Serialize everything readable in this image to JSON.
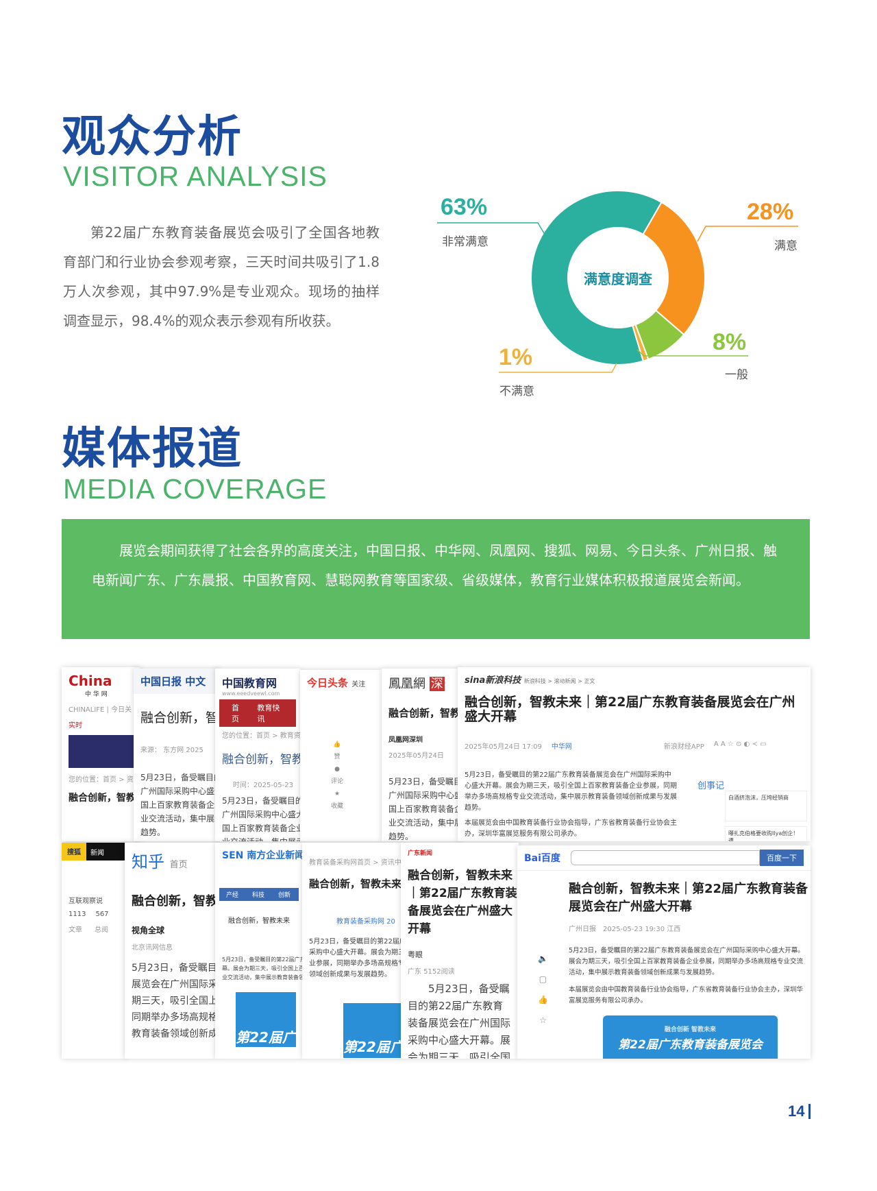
{
  "visitor": {
    "title_cn": "观众分析",
    "title_en": "VISITOR ANALYSIS",
    "paragraph": "第22届广东教育装备展览会吸引了全国各地教育部门和行业协会参观考察，三天时间共吸引了1.8万人次参观，其中97.9%是专业观众。现场的抽样调查显示，98.4%的观众表示参观有所收获。"
  },
  "chart_data": {
    "type": "pie",
    "style": "donut",
    "title": "满意度调查",
    "categories": [
      "非常满意",
      "满意",
      "一般",
      "不满意"
    ],
    "values": [
      63,
      28,
      8,
      1
    ],
    "labels": [
      "63%",
      "28%",
      "8%",
      "1%"
    ],
    "colors": [
      "#2baf9f",
      "#f7921e",
      "#8cc63f",
      "#f0b13a"
    ]
  },
  "media": {
    "title_cn": "媒体报道",
    "title_en": "MEDIA COVERAGE",
    "paragraph": "展览会期间获得了社会各界的高度关注，中国日报、中华网、凤凰网、搜狐、网易、今日头条、广州日报、触电新闻广东、广东晨报、中国教育网、慧聪网教育等国家级、省级媒体，教育行业媒体积极报道展览会新闻。"
  },
  "collage": {
    "headline": "融合创新，智教未来｜第22届广东教育装备展览会在广州盛大开幕",
    "headline_short": "融合创新，智教未来",
    "body1": "5月23日，备受瞩目的第22届广东教育装备展览会在广州国际采购中心盛大开幕。展会为期三天，吸引全国上百家教育装备企业参展，同期举办多场高规格专业交流活动，集中展示教育装备领域创新成果与发展趋势。",
    "body2": "本届展览会由中国教育装备行业协会指导，广东省教育装备行业协会主办，深圳华富展览服务有限公司承办。",
    "banner": "第22届广东教育装备展览会",
    "banner_slogan": "融合创新  智教未来",
    "china": {
      "logo": "China",
      "sub": "中 华 网",
      "nav": "CHINALIFE | 今日关",
      "live": "实时",
      "crumb": "您的位置：首页 > 资"
    },
    "chinadaily": {
      "logo": "中国日报 中文",
      "source": "来源： 东方网 2025"
    },
    "edu": {
      "logo": "中国教育网",
      "url": "www.eeedveewl.com",
      "nav": [
        "首页",
        "教育快讯"
      ],
      "crumb": "您的位置：首页 > 教育资讯 >",
      "time": "时间：2025-05-23"
    },
    "toutiao": {
      "logo": "今日头条",
      "follow": "关注",
      "actions": [
        "赞",
        "评论",
        "收藏"
      ]
    },
    "ifeng": {
      "logo": "鳳凰網",
      "tag": "深",
      "author": "凤凰网深圳",
      "date": "2025年05月24日"
    },
    "sina": {
      "logo": "sina新浪科技",
      "crumb": "新浪科技 > 滚动新闻 > 正文",
      "date": "2025年05月24日 17:09",
      "source": "中华网",
      "app": "新浪财经APP",
      "side_title": "创事记",
      "side1": "白酒挤泡沫，压垮经销商",
      "side2": "曝扎克伯格要收购Ilya创企！遭"
    },
    "sohu": {
      "logo": "搜狐",
      "nav": "新闻",
      "name": "互联观察说",
      "stats": [
        "1113",
        "567"
      ],
      "stat_labels": [
        "文章",
        "总阅"
      ]
    },
    "zhihu": {
      "logo": "知乎",
      "nav": "首页",
      "author": "视角全球",
      "org": "北京讯网信息"
    },
    "sen": {
      "logo": "SEN 南方企业新闻网",
      "nav": [
        "产经",
        "科技",
        "创新"
      ]
    },
    "cg": {
      "crumb": "教育装备采购网首页 > 资讯中心",
      "source": "教育装备采购网 20"
    },
    "yy": {
      "logo": "广东新闻",
      "author": "粤眼",
      "reads": "广东 5152阅读"
    },
    "baidu": {
      "logo": "Bai百度",
      "button": "百度一下",
      "source": "广州日报",
      "date": "2025-05-23 19:30 江西"
    }
  },
  "page_number": "14"
}
